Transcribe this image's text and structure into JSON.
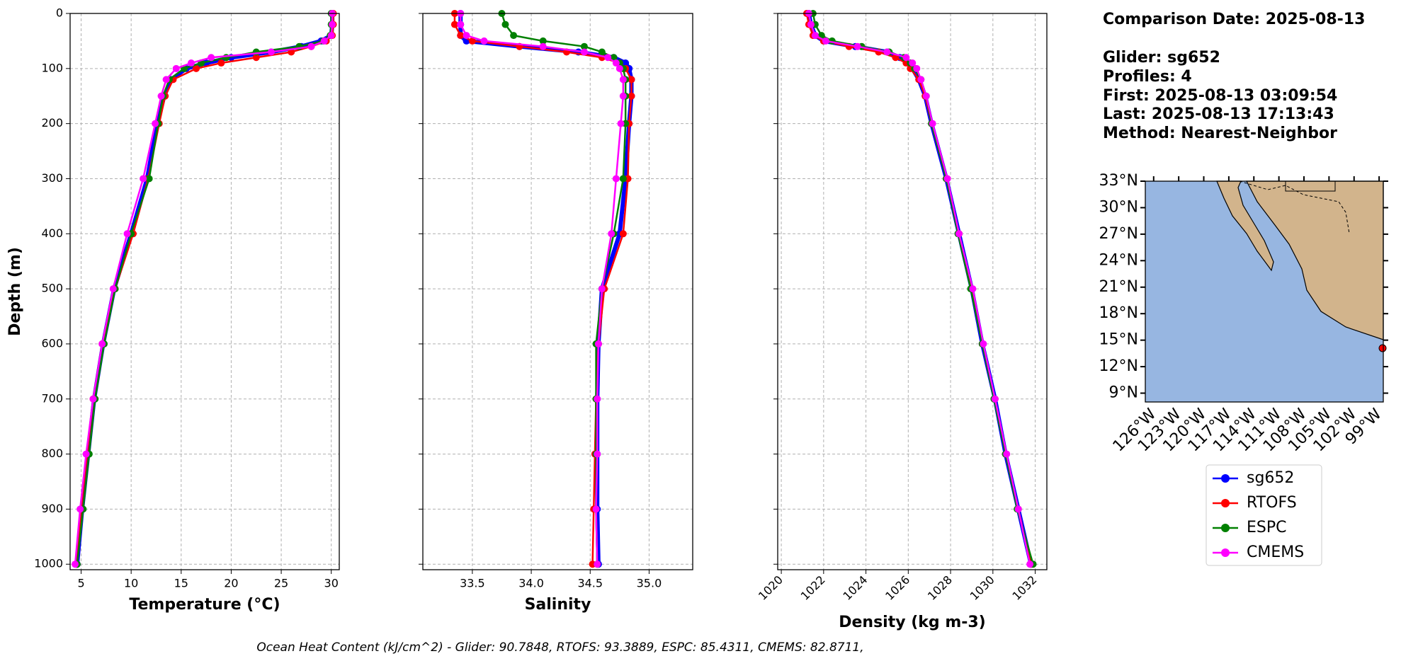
{
  "chart_data": [
    {
      "type": "line",
      "xlabel": "Temperature (°C)",
      "ylabel": "Depth (m)",
      "y": [
        0,
        20,
        40,
        50,
        60,
        70,
        80,
        90,
        100,
        120,
        150,
        200,
        300,
        400,
        500,
        600,
        700,
        800,
        900,
        1000
      ],
      "series": [
        {
          "name": "sg652",
          "color": "#0000ff",
          "values": [
            30.1,
            30.1,
            30.0,
            29.0,
            27.0,
            24.0,
            20.0,
            17.5,
            15.5,
            14.0,
            13.3,
            12.6,
            11.6,
            10.0,
            8.3,
            7.2,
            6.3,
            5.7,
            5.1,
            4.6
          ]
        },
        {
          "name": "RTOFS",
          "color": "#ff0000",
          "values": [
            30.2,
            30.2,
            30.1,
            29.5,
            28.0,
            26.0,
            22.5,
            19.0,
            16.5,
            14.2,
            13.4,
            12.8,
            11.7,
            10.2,
            8.4,
            7.1,
            6.2,
            5.6,
            5.0,
            4.5
          ]
        },
        {
          "name": "ESPC",
          "color": "#008000",
          "values": [
            30.0,
            30.0,
            29.9,
            29.2,
            26.8,
            22.5,
            19.5,
            17.0,
            15.3,
            13.8,
            13.2,
            12.7,
            11.8,
            10.0,
            8.4,
            7.3,
            6.4,
            5.8,
            5.2,
            4.6
          ]
        },
        {
          "name": "CMEMS",
          "color": "#ff00ff",
          "values": [
            30.1,
            30.1,
            30.0,
            29.3,
            28.0,
            24.0,
            18.0,
            16.0,
            14.5,
            13.5,
            13.0,
            12.4,
            11.2,
            9.6,
            8.2,
            7.1,
            6.2,
            5.5,
            4.9,
            4.4
          ]
        }
      ],
      "xlim": [
        3.9,
        30.8
      ],
      "xticks": [
        5,
        10,
        15,
        20,
        25,
        30
      ],
      "ylim": [
        1010,
        0
      ],
      "yticks": [
        0,
        100,
        200,
        300,
        400,
        500,
        600,
        700,
        800,
        900,
        1000
      ],
      "ytick_labels": true,
      "grid": true
    },
    {
      "type": "line",
      "xlabel": "Salinity",
      "y": [
        0,
        20,
        40,
        50,
        60,
        70,
        80,
        90,
        100,
        120,
        150,
        200,
        300,
        400,
        500,
        600,
        700,
        800,
        900,
        1000
      ],
      "series": [
        {
          "name": "sg652",
          "color": "#0000ff",
          "values": [
            33.4,
            33.4,
            33.4,
            33.45,
            33.9,
            34.4,
            34.7,
            34.8,
            34.83,
            34.85,
            34.85,
            34.83,
            34.8,
            34.75,
            34.6,
            34.57,
            34.56,
            34.56,
            34.56,
            34.57
          ]
        },
        {
          "name": "RTOFS",
          "color": "#ff0000",
          "values": [
            33.35,
            33.35,
            33.4,
            33.5,
            33.9,
            34.3,
            34.6,
            34.75,
            34.8,
            34.85,
            34.85,
            34.83,
            34.82,
            34.78,
            34.62,
            34.57,
            34.55,
            34.54,
            34.53,
            34.52
          ]
        },
        {
          "name": "ESPC",
          "color": "#008000",
          "values": [
            33.75,
            33.78,
            33.85,
            34.1,
            34.45,
            34.6,
            34.7,
            34.75,
            34.78,
            34.8,
            34.8,
            34.8,
            34.78,
            34.7,
            34.6,
            34.55,
            34.55,
            34.55,
            34.55,
            34.56
          ]
        },
        {
          "name": "CMEMS",
          "color": "#ff00ff",
          "values": [
            33.4,
            33.4,
            33.45,
            33.6,
            34.1,
            34.45,
            34.65,
            34.72,
            34.75,
            34.78,
            34.78,
            34.76,
            34.72,
            34.68,
            34.6,
            34.57,
            34.56,
            34.56,
            34.55,
            34.56
          ]
        }
      ],
      "xlim": [
        33.08,
        35.37
      ],
      "xticks": [
        33.5,
        {
          "value": 34,
          "label": "34.0"
        },
        34.5,
        {
          "value": 35,
          "label": "35.0"
        }
      ],
      "ylim": [
        1010,
        0
      ],
      "yticks": [
        0,
        100,
        200,
        300,
        400,
        500,
        600,
        700,
        800,
        900,
        1000
      ],
      "ytick_labels": false,
      "grid": true
    },
    {
      "type": "line",
      "xlabel": "Density (kg m-3)",
      "y": [
        0,
        20,
        40,
        50,
        60,
        70,
        80,
        90,
        100,
        120,
        150,
        200,
        300,
        400,
        500,
        600,
        700,
        800,
        900,
        1000
      ],
      "series": [
        {
          "name": "sg652",
          "color": "#0000ff",
          "values": [
            1021.3,
            1021.4,
            1021.6,
            1022,
            1023.5,
            1025,
            1025.6,
            1026,
            1026.2,
            1026.5,
            1026.8,
            1027.1,
            1027.8,
            1028.4,
            1029,
            1029.5,
            1030.1,
            1030.6,
            1031.2,
            1031.8
          ]
        },
        {
          "name": "RTOFS",
          "color": "#ff0000",
          "values": [
            1021.2,
            1021.3,
            1021.5,
            1022,
            1023.2,
            1024.6,
            1025.4,
            1025.9,
            1026.1,
            1026.5,
            1026.8,
            1027.1,
            1027.8,
            1028.4,
            1029,
            1029.5,
            1030.1,
            1030.6,
            1031.2,
            1031.8
          ]
        },
        {
          "name": "ESPC",
          "color": "#008000",
          "values": [
            1021.5,
            1021.6,
            1021.9,
            1022.4,
            1023.8,
            1025.1,
            1025.8,
            1026.1,
            1026.3,
            1026.6,
            1026.85,
            1027.1,
            1027.8,
            1028.35,
            1028.95,
            1029.5,
            1030.05,
            1030.6,
            1031.15,
            1031.9
          ]
        },
        {
          "name": "CMEMS",
          "color": "#ff00ff",
          "values": [
            1021.3,
            1021.4,
            1021.6,
            1022.1,
            1023.6,
            1025,
            1025.9,
            1026.2,
            1026.4,
            1026.6,
            1026.85,
            1027.15,
            1027.85,
            1028.4,
            1029.05,
            1029.55,
            1030.1,
            1030.65,
            1031.2,
            1031.75
          ]
        }
      ],
      "xlim": [
        1019.83,
        1032.55
      ],
      "xticks": [
        1020,
        1022,
        1024,
        1026,
        1028,
        1030,
        1032
      ],
      "xtick_rotate": true,
      "ylim": [
        1010,
        0
      ],
      "yticks": [
        0,
        100,
        200,
        300,
        400,
        500,
        600,
        700,
        800,
        900,
        1000
      ],
      "ytick_labels": false,
      "grid": true
    },
    {
      "type": "map",
      "xlim": [
        -127,
        -98.5
      ],
      "xticks": [
        {
          "value": -126,
          "label": "126°W"
        },
        {
          "value": -123,
          "label": "123°W"
        },
        {
          "value": -120,
          "label": "120°W"
        },
        {
          "value": -117,
          "label": "117°W"
        },
        {
          "value": -114,
          "label": "114°W"
        },
        {
          "value": -111,
          "label": "111°W"
        },
        {
          "value": -108,
          "label": "108°W"
        },
        {
          "value": -105,
          "label": "105°W"
        },
        {
          "value": -102,
          "label": "102°W"
        },
        {
          "value": -99,
          "label": "99°W"
        }
      ],
      "ylim": [
        8,
        33
      ],
      "yticks": [
        {
          "value": 9,
          "label": "9°N"
        },
        {
          "value": 12,
          "label": "12°N"
        },
        {
          "value": 15,
          "label": "15°N"
        },
        {
          "value": 18,
          "label": "18°N"
        },
        {
          "value": 21,
          "label": "21°N"
        },
        {
          "value": 24,
          "label": "24°N"
        },
        {
          "value": 27,
          "label": "27°N"
        },
        {
          "value": 30,
          "label": "30°N"
        },
        {
          "value": 33,
          "label": "33°N"
        }
      ]
    }
  ],
  "info": {
    "comparison_date": "Comparison Date: 2025-08-13",
    "lines": [
      "Glider: sg652",
      "Profiles: 4",
      "First: 2025-08-13 03:09:54",
      "Last: 2025-08-13 17:13:43",
      "Method: Nearest-Neighbor"
    ]
  },
  "footer": "Ocean Heat Content (kJ/cm^2) - Glider: 90.7848,  RTOFS: 93.3889,  ESPC: 85.4311,  CMEMS: 82.8711,"
}
